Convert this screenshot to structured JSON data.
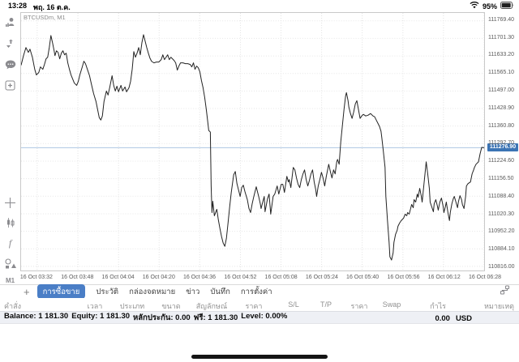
{
  "status_bar": {
    "time": "13:28",
    "date": "พฤ. 16 ต.ค.",
    "battery": "95%"
  },
  "chart": {
    "symbol_label": "BTCUSDm, M1",
    "current_price_label": "111276.90"
  },
  "chart_data": {
    "type": "line",
    "title": "BTCUSDm, M1",
    "symbol": "BTCUSDm",
    "timeframe": "M1",
    "ylabel": "price",
    "ylim": [
      110800,
      111800
    ],
    "grid": true,
    "line_color": "#222222",
    "current_price": 111276.9,
    "current_price_line_color": "#adc6e3",
    "price_badge_color": "#3c74b4",
    "y_ticks": [
      111769.4,
      111701.3,
      111633.2,
      111565.1,
      111497.0,
      111428.9,
      111360.8,
      111292.7,
      111224.6,
      111156.5,
      111088.4,
      111020.3,
      110952.2,
      110884.1,
      110816.0
    ],
    "x_ticks": [
      "16 Oct 03:32",
      "16 Oct 03:48",
      "16 Oct 04:04",
      "16 Oct 04:20",
      "16 Oct 04:36",
      "16 Oct 04:52",
      "16 Oct 05:08",
      "16 Oct 05:24",
      "16 Oct 05:40",
      "16 Oct 05:56",
      "16 Oct 06:12",
      "16 Oct 06:28"
    ],
    "x_tick_pos": [
      20,
      70.5,
      121,
      171.4,
      221.8,
      272.3,
      322.7,
      373.2,
      423.6,
      474.1,
      524.5,
      575
    ],
    "x_span": 575,
    "points": [
      [
        0,
        111596.9
      ],
      [
        3,
        111634.4
      ],
      [
        6,
        111665.6
      ],
      [
        9,
        111646.9
      ],
      [
        11,
        111659.4
      ],
      [
        14,
        111628.1
      ],
      [
        17,
        111581.3
      ],
      [
        19,
        111559.4
      ],
      [
        22,
        111568.8
      ],
      [
        24,
        111590.6
      ],
      [
        27,
        111581.3
      ],
      [
        29,
        111600
      ],
      [
        31,
        111621.9
      ],
      [
        33,
        111628.1
      ],
      [
        35,
        111665.6
      ],
      [
        37,
        111712.5
      ],
      [
        39,
        111684.4
      ],
      [
        41,
        111653.1
      ],
      [
        42,
        111634.4
      ],
      [
        44,
        111653.1
      ],
      [
        46,
        111646.9
      ],
      [
        48,
        111621.9
      ],
      [
        50,
        111643.8
      ],
      [
        52,
        111653.1
      ],
      [
        54,
        111637.5
      ],
      [
        56,
        111643.8
      ],
      [
        58,
        111606.3
      ],
      [
        60,
        111581.3
      ],
      [
        62,
        111559.4
      ],
      [
        64,
        111543.8
      ],
      [
        66,
        111528.1
      ],
      [
        69,
        111518.8
      ],
      [
        71,
        111534.4
      ],
      [
        73,
        111559.4
      ],
      [
        76,
        111590.6
      ],
      [
        78,
        111612.5
      ],
      [
        80,
        111603.1
      ],
      [
        83,
        111575
      ],
      [
        85,
        111556.3
      ],
      [
        87,
        111528.1
      ],
      [
        90,
        111487.5
      ],
      [
        93,
        111456.3
      ],
      [
        95,
        111425
      ],
      [
        97,
        111393.8
      ],
      [
        99,
        111384.4
      ],
      [
        101,
        111400
      ],
      [
        103,
        111456.3
      ],
      [
        106,
        111496.9
      ],
      [
        108,
        111481.3
      ],
      [
        110,
        111509.4
      ],
      [
        113,
        111556.3
      ],
      [
        115,
        111518.8
      ],
      [
        117,
        111496.9
      ],
      [
        119,
        111515.6
      ],
      [
        121,
        111493.8
      ],
      [
        124,
        111518.8
      ],
      [
        126,
        111496.9
      ],
      [
        129,
        111512.5
      ],
      [
        131,
        111493.8
      ],
      [
        134,
        111509.4
      ],
      [
        136,
        111534.4
      ],
      [
        138,
        111581.3
      ],
      [
        140,
        111650
      ],
      [
        142,
        111628.1
      ],
      [
        144,
        111643.8
      ],
      [
        146,
        111665.6
      ],
      [
        148,
        111637.5
      ],
      [
        150,
        111684.4
      ],
      [
        152,
        111715.6
      ],
      [
        154,
        111690.6
      ],
      [
        156,
        111665.6
      ],
      [
        158,
        111643.8
      ],
      [
        160,
        111625
      ],
      [
        162,
        111612.5
      ],
      [
        165,
        111606.3
      ],
      [
        168,
        111609.4
      ],
      [
        171,
        111609.4
      ],
      [
        174,
        111618.8
      ],
      [
        176,
        111637.5
      ],
      [
        178,
        111618.8
      ],
      [
        180,
        111628.1
      ],
      [
        182,
        111637.5
      ],
      [
        184,
        111618.8
      ],
      [
        186,
        111628.1
      ],
      [
        188,
        111621.9
      ],
      [
        190,
        111615.6
      ],
      [
        192,
        111606.3
      ],
      [
        194,
        111578.1
      ],
      [
        196,
        111593.8
      ],
      [
        198,
        111606.3
      ],
      [
        201,
        111606.3
      ],
      [
        204,
        111603.1
      ],
      [
        207,
        111603.1
      ],
      [
        210,
        111600
      ],
      [
        212,
        111590.6
      ],
      [
        214,
        111606.3
      ],
      [
        216,
        111581.3
      ],
      [
        218,
        111593.8
      ],
      [
        220,
        111587.5
      ],
      [
        222,
        111571.9
      ],
      [
        224,
        111537.5
      ],
      [
        226,
        111509.4
      ],
      [
        228,
        111471.9
      ],
      [
        230,
        111425
      ],
      [
        232,
        111371.9
      ],
      [
        233,
        111343.8
      ],
      [
        235,
        111337.5
      ],
      [
        236,
        111128.1
      ],
      [
        237,
        111025
      ],
      [
        238,
        111068.8
      ],
      [
        240,
        111012.5
      ],
      [
        243,
        111037.5
      ],
      [
        245,
        110996.9
      ],
      [
        247,
        110962.5
      ],
      [
        249,
        110931.3
      ],
      [
        251,
        110906.3
      ],
      [
        253,
        110893.8
      ],
      [
        255,
        110925
      ],
      [
        257,
        110984.4
      ],
      [
        259,
        111046.9
      ],
      [
        261,
        111103.1
      ],
      [
        264,
        111171.9
      ],
      [
        266,
        111184.4
      ],
      [
        268,
        111137.5
      ],
      [
        270,
        111112.5
      ],
      [
        272,
        111087.5
      ],
      [
        274,
        111121.9
      ],
      [
        276,
        111131.3
      ],
      [
        278,
        111106.3
      ],
      [
        281,
        111075
      ],
      [
        283,
        111040.6
      ],
      [
        285,
        111025
      ],
      [
        287,
        111059.4
      ],
      [
        289,
        111087.5
      ],
      [
        292,
        111125
      ],
      [
        295,
        111087.5
      ],
      [
        297,
        111059.4
      ],
      [
        298,
        111040.6
      ],
      [
        300,
        111065.6
      ],
      [
        302,
        111087.5
      ],
      [
        303,
        111028.1
      ],
      [
        306,
        111078.1
      ],
      [
        308,
        111096.9
      ],
      [
        310,
        111018.8
      ],
      [
        313,
        111087.5
      ],
      [
        315,
        111096.9
      ],
      [
        318,
        111128.1
      ],
      [
        320,
        111096.9
      ],
      [
        323,
        111134.4
      ],
      [
        325,
        111134.4
      ],
      [
        327,
        111103.1
      ],
      [
        330,
        111165.6
      ],
      [
        332,
        111143.8
      ],
      [
        333,
        111153.1
      ],
      [
        335,
        111121.9
      ],
      [
        338,
        111200
      ],
      [
        340,
        111190.6
      ],
      [
        342,
        111159.4
      ],
      [
        344,
        111134.4
      ],
      [
        346,
        111121.9
      ],
      [
        348,
        111153.1
      ],
      [
        350,
        111175
      ],
      [
        352,
        111190.6
      ],
      [
        354,
        111153.1
      ],
      [
        356,
        111128.1
      ],
      [
        358,
        111150
      ],
      [
        360,
        111175
      ],
      [
        362,
        111190.6
      ],
      [
        364,
        111143.8
      ],
      [
        366,
        111112.5
      ],
      [
        367,
        111087.5
      ],
      [
        369,
        111128.1
      ],
      [
        371,
        111153.1
      ],
      [
        373,
        111181.3
      ],
      [
        375,
        111159.4
      ],
      [
        377,
        111128.1
      ],
      [
        379,
        111165.6
      ],
      [
        381,
        111196.9
      ],
      [
        382,
        111212.5
      ],
      [
        384,
        111184.4
      ],
      [
        386,
        111159.4
      ],
      [
        388,
        111190.6
      ],
      [
        390,
        111175
      ],
      [
        392,
        111221.9
      ],
      [
        393,
        111231.3
      ],
      [
        395,
        111212.5
      ],
      [
        397,
        111300
      ],
      [
        399,
        111362.5
      ],
      [
        401,
        111425
      ],
      [
        403,
        111478.1
      ],
      [
        404,
        111490.6
      ],
      [
        406,
        111459.4
      ],
      [
        407,
        111434.4
      ],
      [
        409,
        111409.4
      ],
      [
        411,
        111390.6
      ],
      [
        413,
        111415.6
      ],
      [
        415,
        111446.9
      ],
      [
        417,
        111459.4
      ],
      [
        419,
        111425
      ],
      [
        421,
        111390.6
      ],
      [
        423,
        111400
      ],
      [
        425,
        111406.3
      ],
      [
        428,
        111400
      ],
      [
        431,
        111403.1
      ],
      [
        434,
        111409.4
      ],
      [
        437,
        111400
      ],
      [
        439,
        111396.9
      ],
      [
        441,
        111384.4
      ],
      [
        443,
        111371.9
      ],
      [
        445,
        111359.4
      ],
      [
        447,
        111340.6
      ],
      [
        448,
        111315.6
      ],
      [
        450,
        111259.4
      ],
      [
        452,
        111200
      ],
      [
        453,
        111087.5
      ],
      [
        455,
        110993.8
      ],
      [
        457,
        110909.4
      ],
      [
        458,
        110853.1
      ],
      [
        460,
        110840.6
      ],
      [
        462,
        110868.8
      ],
      [
        463,
        110909.4
      ],
      [
        465,
        110940.6
      ],
      [
        467,
        110956.3
      ],
      [
        468,
        110971.9
      ],
      [
        470,
        110984.4
      ],
      [
        472,
        110993.8
      ],
      [
        475,
        111003.1
      ],
      [
        477,
        111018.8
      ],
      [
        479,
        111012.5
      ],
      [
        480,
        111025
      ],
      [
        482,
        111018.8
      ],
      [
        485,
        111056.3
      ],
      [
        487,
        111043.8
      ],
      [
        488,
        111075
      ],
      [
        490,
        111065.6
      ],
      [
        492,
        111096.9
      ],
      [
        493,
        111084.4
      ],
      [
        495,
        111118.8
      ],
      [
        497,
        111087.5
      ],
      [
        498,
        111065.6
      ],
      [
        500,
        111128.1
      ],
      [
        502,
        111190.6
      ],
      [
        503,
        111221.9
      ],
      [
        505,
        111175
      ],
      [
        507,
        111118.8
      ],
      [
        508,
        111065.6
      ],
      [
        510,
        111046.9
      ],
      [
        512,
        111028.1
      ],
      [
        513,
        111059.4
      ],
      [
        515,
        111075
      ],
      [
        517,
        111050
      ],
      [
        518,
        111034.4
      ],
      [
        520,
        111065.6
      ],
      [
        522,
        111081.3
      ],
      [
        524,
        111050
      ],
      [
        525,
        111025
      ],
      [
        527,
        111050
      ],
      [
        528,
        111065.6
      ],
      [
        530,
        111025
      ],
      [
        532,
        110993.8
      ],
      [
        533,
        111025
      ],
      [
        535,
        111059.4
      ],
      [
        537,
        111081.3
      ],
      [
        538,
        111087.5
      ],
      [
        540,
        111065.6
      ],
      [
        542,
        111043.8
      ],
      [
        543,
        111065.6
      ],
      [
        545,
        111090.6
      ],
      [
        547,
        111075
      ],
      [
        548,
        111056.3
      ],
      [
        550,
        111040.6
      ],
      [
        552,
        111087.5
      ],
      [
        553,
        111128.1
      ],
      [
        555,
        111137.5
      ],
      [
        558,
        111143.8
      ],
      [
        560,
        111175
      ],
      [
        562,
        111190.6
      ],
      [
        563,
        111200
      ],
      [
        565,
        111212.5
      ],
      [
        568,
        111221.9
      ],
      [
        570,
        111253.1
      ],
      [
        572,
        111278.1
      ],
      [
        575,
        111276.9
      ]
    ]
  },
  "sidebar": {
    "timeframe_label": "M1",
    "icons": [
      "quotes-icon",
      "alerts-icon",
      "chat-icon",
      "new-order-icon",
      "crosshair-icon",
      "chart-type-icon",
      "indicators-icon",
      "objects-icon"
    ]
  },
  "tabs": {
    "add_label": "+",
    "items": [
      {
        "name": "trade",
        "label": "การซื้อขาย",
        "active": true
      },
      {
        "name": "history",
        "label": "ประวัติ",
        "active": false
      },
      {
        "name": "mailbox",
        "label": "กล่องจดหมาย",
        "active": false
      },
      {
        "name": "news",
        "label": "ข่าว",
        "active": false
      },
      {
        "name": "journal",
        "label": "บันทึก",
        "active": false
      },
      {
        "name": "settings",
        "label": "การตั้งค่า",
        "active": false
      }
    ]
  },
  "table": {
    "headers": [
      {
        "name": "order",
        "label": "คำสั่ง"
      },
      {
        "name": "time",
        "label": "เวลา"
      },
      {
        "name": "type",
        "label": "ประเภท"
      },
      {
        "name": "volume",
        "label": "ขนาด"
      },
      {
        "name": "symbol",
        "label": "สัญลักษณ์"
      },
      {
        "name": "price-open",
        "label": "ราคา"
      },
      {
        "name": "sl",
        "label": "S/L"
      },
      {
        "name": "tp",
        "label": "T/P"
      },
      {
        "name": "price-current",
        "label": "ราคา"
      },
      {
        "name": "swap",
        "label": "Swap"
      },
      {
        "name": "profit",
        "label": "กำไร"
      },
      {
        "name": "comment",
        "label": "หมายเหตุ"
      }
    ]
  },
  "account_bar": {
    "items": [
      {
        "label": "Balance:",
        "value": "1 181.30"
      },
      {
        "label": "Equity:",
        "value": "1 181.30"
      },
      {
        "label": "หลักประกัน:",
        "value": "0.00"
      },
      {
        "label": "ฟรี:",
        "value": "1 181.30"
      },
      {
        "label": "Level:",
        "value": "0.00%"
      }
    ],
    "total_profit": "0.00",
    "currency": "USD"
  }
}
